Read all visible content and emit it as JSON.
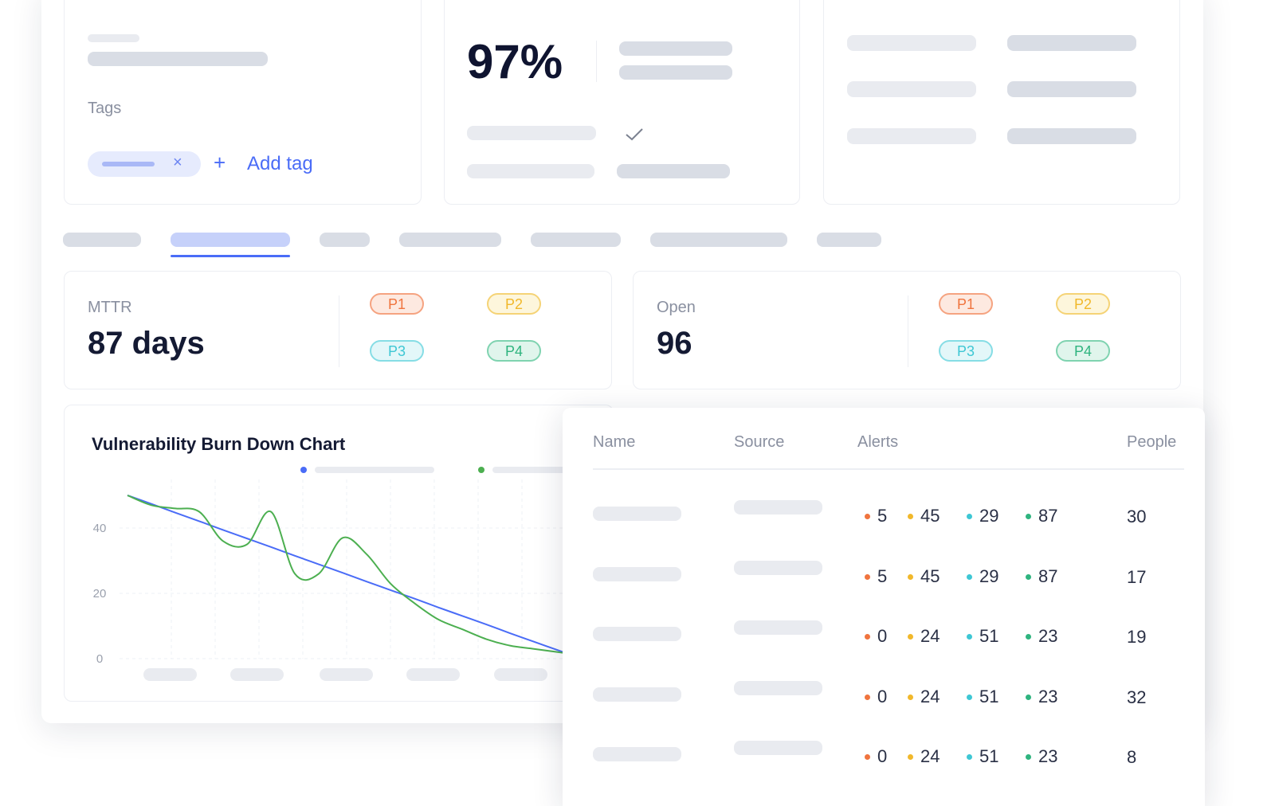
{
  "top": {
    "tags_label": "Tags",
    "tag_remove": "×",
    "add_tag_icon": "+",
    "add_tag": "Add tag",
    "score": "97%"
  },
  "metrics": [
    {
      "label": "MTTR",
      "value": "87 days",
      "badges": [
        "P1",
        "P2",
        "P3",
        "P4"
      ]
    },
    {
      "label": "Open",
      "value": "96",
      "badges": [
        "P1",
        "P2",
        "P3",
        "P4"
      ]
    }
  ],
  "chart": {
    "type": "line",
    "title": "Vulnerability Burn Down Chart",
    "ylim": [
      0,
      50
    ],
    "yticks": [
      0,
      20,
      40
    ],
    "grid": true,
    "series": [
      {
        "color": "#4a6cf7",
        "values": [
          50,
          47.4,
          44.7,
          42.1,
          39.4,
          36.8,
          34.2,
          31.5,
          28.9,
          26.3,
          23.6,
          21,
          18.4,
          15.7,
          13.1,
          10.5,
          7.8,
          5.2,
          2.6,
          0
        ]
      },
      {
        "color": "#4caf50",
        "values": [
          50,
          47,
          46,
          45,
          36,
          35,
          45,
          26,
          26,
          37,
          32,
          23,
          17,
          12,
          9,
          6,
          4,
          3,
          2,
          1
        ]
      }
    ]
  },
  "table": {
    "columns": [
      "Name",
      "Source",
      "Alerts",
      "People"
    ],
    "rows": [
      {
        "alerts": [
          5,
          45,
          29,
          87
        ],
        "people": 30
      },
      {
        "alerts": [
          5,
          45,
          29,
          87
        ],
        "people": 17
      },
      {
        "alerts": [
          0,
          24,
          51,
          23
        ],
        "people": 19
      },
      {
        "alerts": [
          0,
          24,
          51,
          23
        ],
        "people": 32
      },
      {
        "alerts": [
          0,
          24,
          51,
          23
        ],
        "people": 8
      }
    ]
  }
}
